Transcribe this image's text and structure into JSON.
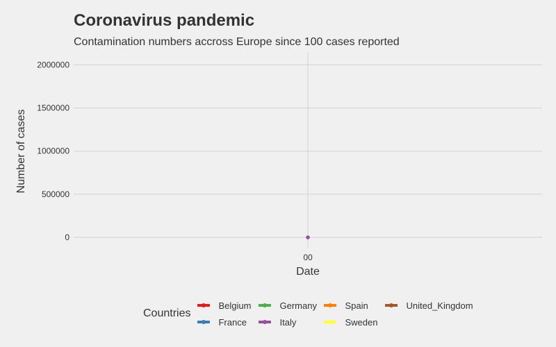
{
  "chart_data": {
    "type": "line",
    "title": "Coronavirus pandemic",
    "subtitle": "Contamination numbers accross Europe since 100 cases reported",
    "xlabel": "Date",
    "ylabel": "Number of cases",
    "x_ticks": [
      "00"
    ],
    "y_ticks": [
      {
        "value": 0,
        "label": "0"
      },
      {
        "value": 500000,
        "label": "500000"
      },
      {
        "value": 1000000,
        "label": "1000000"
      },
      {
        "value": 1500000,
        "label": "1500000"
      },
      {
        "value": 2000000,
        "label": "2000000"
      }
    ],
    "ylim": [
      -120000,
      2140000
    ],
    "grid": true,
    "legend_title": "Countries",
    "legend_position": "bottom",
    "series": [
      {
        "name": "Belgium",
        "color": "#E41A1C",
        "points": []
      },
      {
        "name": "France",
        "color": "#377EB8",
        "points": []
      },
      {
        "name": "Germany",
        "color": "#4DAF4A",
        "points": []
      },
      {
        "name": "Italy",
        "color": "#984EA3",
        "points": [
          {
            "x": "00",
            "y": 0
          }
        ]
      },
      {
        "name": "Spain",
        "color": "#FF7F00",
        "points": []
      },
      {
        "name": "Sweden",
        "color": "#FFFF33",
        "points": []
      },
      {
        "name": "United_Kingdom",
        "color": "#A65628",
        "points": []
      }
    ]
  }
}
